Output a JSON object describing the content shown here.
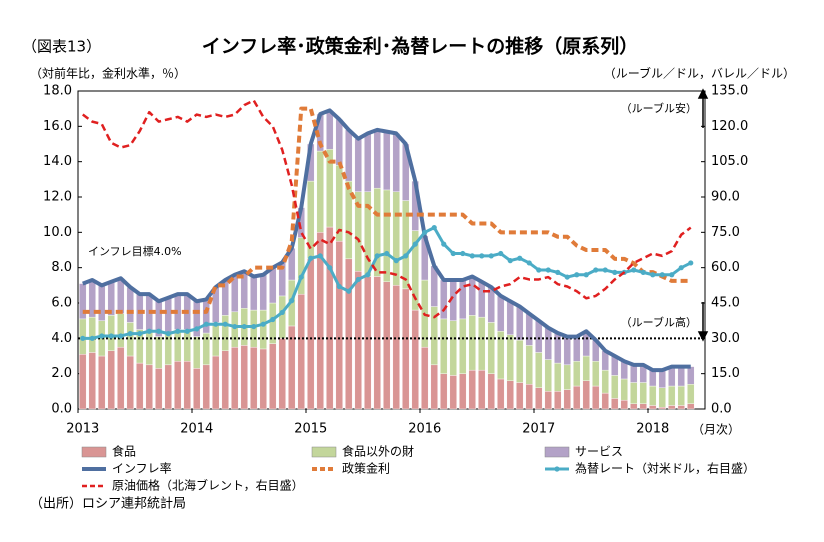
{
  "figure_label": "（図表13）",
  "chart_data": {
    "type": "bar",
    "stacked": true,
    "title": "インフレ率･政策金利･為替レートの推移（原系列）",
    "y_label": "（対前年比，金利水準，％）",
    "y2_label": "（ルーブル／ドル，バレル／ドル）",
    "x_label": "（月次）",
    "annotations": [
      "インフレ目標4.0%",
      "（ルーブル安）",
      "（ルーブル高）"
    ],
    "target_line": 4,
    "source": "（出所）ロシア連邦統計局",
    "grid": false,
    "categories": [
      "2013",
      null,
      null,
      null,
      null,
      null,
      null,
      null,
      null,
      null,
      null,
      null,
      "2014",
      null,
      null,
      null,
      null,
      null,
      null,
      null,
      null,
      null,
      null,
      null,
      "2015",
      null,
      null,
      null,
      null,
      null,
      null,
      null,
      null,
      null,
      null,
      null,
      "2016",
      null,
      null,
      null,
      null,
      null,
      null,
      null,
      null,
      null,
      null,
      null,
      "2017",
      null,
      null,
      null,
      null,
      null,
      null,
      null,
      null,
      null,
      null,
      null,
      "2018",
      null,
      null,
      null,
      null
    ],
    "ylim": [
      0,
      18
    ],
    "yticks": [
      {
        "value": 0,
        "label": "0.0"
      },
      {
        "value": 2,
        "label": "2.0"
      },
      {
        "value": 4,
        "label": "4.0"
      },
      {
        "value": 6,
        "label": "6.0"
      },
      {
        "value": 8,
        "label": "8.0"
      },
      {
        "value": 10,
        "label": "10.0"
      },
      {
        "value": 12,
        "label": "12.0"
      },
      {
        "value": 14,
        "label": "14.0"
      },
      {
        "value": 16,
        "label": "16.0"
      },
      {
        "value": 18,
        "label": "18.0"
      }
    ],
    "y2lim": [
      0,
      135
    ],
    "y2ticks": [
      {
        "value": 0,
        "label": "0.0"
      },
      {
        "value": 15,
        "label": "15.0"
      },
      {
        "value": 30,
        "label": "30.0"
      },
      {
        "value": 45,
        "label": "45.0"
      },
      {
        "value": 60,
        "label": "60.0"
      },
      {
        "value": 75,
        "label": "75.0"
      },
      {
        "value": 90,
        "label": "90.0"
      },
      {
        "value": 105,
        "label": "105.0"
      },
      {
        "value": 120,
        "label": "120.0"
      },
      {
        "value": 135,
        "label": "135.0"
      }
    ],
    "series": [
      {
        "name": "食品",
        "type": "bar",
        "color": "#d99594",
        "values": [
          3.1,
          3.2,
          3.0,
          3.3,
          3.5,
          3.0,
          2.6,
          2.5,
          2.3,
          2.5,
          2.7,
          2.7,
          2.3,
          2.5,
          3.0,
          3.3,
          3.5,
          3.6,
          3.5,
          3.4,
          3.7,
          4.0,
          4.7,
          6.5,
          8.5,
          10.0,
          10.3,
          9.5,
          8.5,
          7.8,
          7.5,
          7.5,
          7.2,
          7.0,
          6.8,
          5.6,
          3.5,
          2.5,
          2.0,
          1.9,
          2.0,
          2.2,
          2.2,
          2.0,
          1.7,
          1.6,
          1.5,
          1.4,
          1.2,
          1.0,
          1.0,
          1.1,
          1.3,
          1.6,
          1.3,
          0.9,
          0.6,
          0.5,
          0.3,
          0.3,
          0.2,
          0.1,
          0.2,
          0.2,
          0.3
        ]
      },
      {
        "name": "食品以外の財",
        "type": "bar",
        "color": "#c3d69b",
        "values": [
          2.0,
          2.0,
          2.0,
          2.0,
          1.9,
          1.9,
          1.9,
          1.9,
          1.8,
          1.8,
          1.8,
          1.8,
          1.8,
          1.8,
          1.9,
          2.0,
          2.0,
          2.1,
          2.1,
          2.2,
          2.3,
          2.4,
          2.6,
          3.2,
          4.4,
          4.6,
          4.4,
          4.3,
          4.4,
          4.5,
          4.8,
          5.0,
          5.2,
          5.3,
          5.0,
          4.5,
          3.8,
          3.3,
          3.1,
          3.1,
          3.1,
          3.1,
          3.0,
          2.9,
          2.7,
          2.6,
          2.4,
          2.2,
          2.0,
          1.8,
          1.6,
          1.4,
          1.4,
          1.4,
          1.4,
          1.3,
          1.3,
          1.2,
          1.2,
          1.2,
          1.1,
          1.1,
          1.1,
          1.1,
          1.1
        ]
      },
      {
        "name": "サービス",
        "type": "bar",
        "color": "#b3a2c7",
        "values": [
          2.0,
          2.1,
          2.0,
          1.9,
          2.0,
          2.0,
          2.0,
          2.1,
          2.0,
          2.0,
          2.0,
          2.0,
          2.0,
          1.9,
          2.0,
          2.0,
          2.1,
          2.1,
          1.9,
          2.0,
          2.0,
          1.9,
          1.8,
          1.7,
          2.1,
          2.1,
          2.2,
          2.6,
          2.9,
          3.0,
          3.3,
          3.3,
          3.3,
          3.3,
          3.2,
          2.8,
          2.5,
          2.3,
          2.2,
          2.3,
          2.2,
          2.2,
          2.0,
          2.0,
          2.0,
          1.9,
          1.9,
          1.8,
          1.8,
          1.8,
          1.7,
          1.6,
          1.4,
          1.4,
          1.2,
          1.1,
          1.1,
          1.0,
          1.0,
          1.0,
          0.9,
          1.0,
          1.1,
          1.1,
          1.0
        ]
      },
      {
        "name": "インフレ率",
        "type": "line",
        "color": "#4f6fa0",
        "width": 4,
        "values": [
          7.1,
          7.3,
          7.0,
          7.2,
          7.4,
          6.9,
          6.5,
          6.5,
          6.1,
          6.3,
          6.5,
          6.5,
          6.1,
          6.2,
          6.9,
          7.3,
          7.6,
          7.8,
          7.5,
          7.6,
          8.0,
          8.3,
          9.1,
          11.4,
          15.0,
          16.7,
          16.9,
          16.4,
          15.8,
          15.3,
          15.6,
          15.8,
          15.7,
          15.6,
          15.0,
          12.9,
          9.8,
          8.1,
          7.3,
          7.3,
          7.3,
          7.5,
          7.2,
          6.9,
          6.4,
          6.1,
          5.8,
          5.4,
          5.0,
          4.6,
          4.3,
          4.1,
          4.1,
          4.4,
          3.9,
          3.3,
          3.0,
          2.7,
          2.5,
          2.5,
          2.2,
          2.2,
          2.4,
          2.4,
          2.4
        ]
      },
      {
        "name": "政策金利",
        "type": "line",
        "color": "#e07b39",
        "width": 4,
        "dash": true,
        "values": [
          5.5,
          5.5,
          5.5,
          5.5,
          5.5,
          5.5,
          5.5,
          5.5,
          5.5,
          5.5,
          5.5,
          5.5,
          5.5,
          5.5,
          7.0,
          7.0,
          7.5,
          7.5,
          8.0,
          8.0,
          8.0,
          8.0,
          9.5,
          17.0,
          17.0,
          15.0,
          14.0,
          14.0,
          12.5,
          11.5,
          11.5,
          11.0,
          11.0,
          11.0,
          11.0,
          11.0,
          11.0,
          11.0,
          11.0,
          11.0,
          11.0,
          10.5,
          10.5,
          10.5,
          10.0,
          10.0,
          10.0,
          10.0,
          10.0,
          10.0,
          9.75,
          9.75,
          9.25,
          9.0,
          9.0,
          9.0,
          8.5,
          8.5,
          8.25,
          7.75,
          7.75,
          7.5,
          7.25,
          7.25,
          7.25
        ]
      },
      {
        "name": "為替レート（対米ドル，右目盛）",
        "type": "line",
        "axis": "y2",
        "color": "#4bacc6",
        "width": 3,
        "marker": true,
        "values": [
          30,
          30,
          31,
          31,
          31,
          32,
          32,
          33,
          33,
          32,
          33,
          33,
          34,
          36,
          36,
          36,
          35,
          35,
          35,
          36,
          38,
          41,
          46,
          56,
          64,
          65,
          60,
          52,
          50,
          55,
          57,
          65,
          66,
          63,
          65,
          70,
          75,
          77,
          70,
          66,
          66,
          65,
          65,
          65,
          66,
          63,
          64,
          62,
          59,
          59,
          58,
          56,
          57,
          57,
          59,
          59,
          58,
          58,
          59,
          58,
          57,
          57,
          57,
          60,
          62
        ]
      },
      {
        "name": "原油価格（北海ブレント，右目盛）",
        "type": "line",
        "axis": "y2",
        "color": "#e02020",
        "width": 2.5,
        "dash": true,
        "values": [
          125,
          122,
          121,
          113,
          111,
          112,
          118,
          126,
          122,
          123,
          124,
          122,
          125,
          124,
          125,
          124,
          125,
          129,
          131,
          124,
          120,
          110,
          95,
          75,
          68,
          72,
          70,
          76,
          75,
          72,
          64,
          58,
          58,
          57,
          55,
          47,
          40,
          39,
          42,
          48,
          52,
          53,
          50,
          50,
          52,
          53,
          56,
          55,
          55,
          56,
          53,
          52,
          50,
          47,
          48,
          51,
          55,
          58,
          62,
          64,
          66,
          65,
          67,
          74,
          77
        ]
      }
    ]
  }
}
